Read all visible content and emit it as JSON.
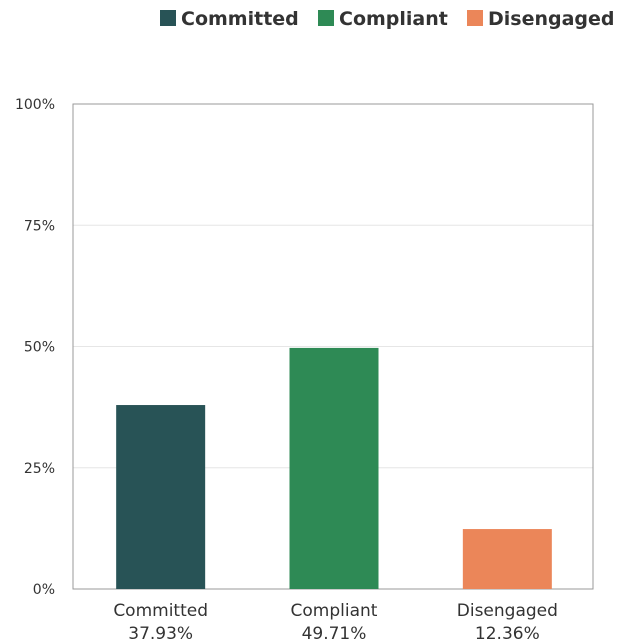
{
  "chart_data": {
    "type": "bar",
    "categories": [
      "Committed",
      "Compliant",
      "Disengaged"
    ],
    "values": [
      37.93,
      49.71,
      12.36
    ],
    "value_labels": [
      "37.93%",
      "49.71%",
      "12.36%"
    ],
    "colors": [
      "#285356",
      "#2E8A55",
      "#EB8659"
    ],
    "legend": [
      {
        "name": "Committed",
        "color": "#285356"
      },
      {
        "name": "Compliant",
        "color": "#2E8A55"
      },
      {
        "name": "Disengaged",
        "color": "#EB8659"
      }
    ],
    "legend_position": "top-right",
    "y_ticks": [
      "0%",
      "25%",
      "50%",
      "75%",
      "100%"
    ],
    "ylim": [
      0,
      100
    ],
    "grid": true,
    "title": "",
    "xlabel": "",
    "ylabel": ""
  }
}
